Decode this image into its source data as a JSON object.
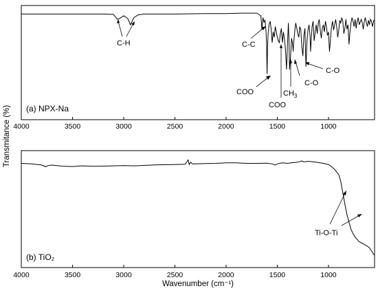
{
  "chart_data": [
    {
      "type": "line",
      "panel_label": "(a) NPX-Na",
      "xlim": [
        4000,
        550
      ],
      "x_reversed": true,
      "xticks": [
        4000,
        3500,
        3000,
        2500,
        2000,
        1500,
        1000
      ],
      "ylim": [
        0,
        1
      ],
      "series": [
        {
          "x": [
            4000,
            3800,
            3500,
            3200,
            3100,
            3060,
            3040,
            3000,
            2960,
            2935,
            2900,
            2860,
            2800,
            2500,
            2200,
            2000,
            1850,
            1700,
            1660,
            1650,
            1640,
            1630,
            1620,
            1610,
            1605,
            1600,
            1595,
            1590,
            1580,
            1570,
            1560,
            1550,
            1540,
            1530,
            1520,
            1510,
            1500,
            1490,
            1480,
            1470,
            1460,
            1450,
            1440,
            1430,
            1420,
            1410,
            1400,
            1392,
            1385,
            1380,
            1370,
            1360,
            1350,
            1345,
            1340,
            1330,
            1320,
            1310,
            1300,
            1290,
            1280,
            1270,
            1260,
            1250,
            1240,
            1230,
            1225,
            1220,
            1210,
            1200,
            1190,
            1180,
            1175,
            1170,
            1160,
            1150,
            1140,
            1130,
            1120,
            1110,
            1100,
            1090,
            1080,
            1070,
            1060,
            1050,
            1040,
            1030,
            1020,
            1010,
            1000,
            990,
            980,
            970,
            960,
            950,
            940,
            930,
            920,
            910,
            900,
            890,
            880,
            870,
            860,
            850,
            840,
            830,
            820,
            810,
            800,
            790,
            780,
            770,
            760,
            750,
            740,
            730,
            720,
            710,
            700,
            690,
            680,
            670,
            660,
            650,
            640,
            630,
            620,
            610,
            600,
            590,
            580,
            570,
            560,
            550
          ],
          "y": [
            0.92,
            0.92,
            0.92,
            0.92,
            0.915,
            0.86,
            0.87,
            0.9,
            0.87,
            0.8,
            0.88,
            0.91,
            0.92,
            0.92,
            0.925,
            0.925,
            0.93,
            0.93,
            0.9,
            0.75,
            0.88,
            0.83,
            0.85,
            0.72,
            0.6,
            0.25,
            0.55,
            0.7,
            0.8,
            0.84,
            0.76,
            0.6,
            0.72,
            0.66,
            0.78,
            0.72,
            0.66,
            0.62,
            0.6,
            0.7,
            0.76,
            0.6,
            0.72,
            0.64,
            0.52,
            0.3,
            0.6,
            0.82,
            0.6,
            0.3,
            0.45,
            0.65,
            0.58,
            0.5,
            0.6,
            0.72,
            0.82,
            0.76,
            0.7,
            0.66,
            0.78,
            0.74,
            0.55,
            0.45,
            0.68,
            0.76,
            0.55,
            0.33,
            0.62,
            0.74,
            0.8,
            0.68,
            0.5,
            0.6,
            0.78,
            0.84,
            0.62,
            0.72,
            0.8,
            0.7,
            0.82,
            0.86,
            0.74,
            0.65,
            0.76,
            0.8,
            0.72,
            0.84,
            0.78,
            0.68,
            0.72,
            0.5,
            0.64,
            0.78,
            0.84,
            0.74,
            0.8,
            0.86,
            0.78,
            0.66,
            0.74,
            0.85,
            0.82,
            0.88,
            0.84,
            0.7,
            0.76,
            0.86,
            0.75,
            0.8,
            0.58,
            0.72,
            0.82,
            0.88,
            0.84,
            0.78,
            0.86,
            0.76,
            0.84,
            0.88,
            0.8,
            0.83,
            0.86,
            0.82,
            0.75,
            0.84,
            0.88,
            0.82,
            0.78,
            0.85,
            0.8,
            0.86,
            0.84,
            0.78,
            0.84,
            0.86
          ]
        }
      ],
      "annotations": [
        {
          "text": "C-H"
        },
        {
          "text": "C-C"
        },
        {
          "text": "COO"
        },
        {
          "text": "COO"
        },
        {
          "text": "CH",
          "sub": "3"
        },
        {
          "text": "C-O"
        },
        {
          "text": "C-O"
        }
      ]
    },
    {
      "type": "line",
      "panel_label": "(b) TiO₂",
      "xlim": [
        4000,
        550
      ],
      "x_reversed": true,
      "xticks": [
        4000,
        3500,
        3000,
        2500,
        2000,
        1500,
        1000
      ],
      "xlabel": "Wavenumber (cm⁻¹)",
      "ylim": [
        0,
        1
      ],
      "series": [
        {
          "x": [
            4000,
            3900,
            3800,
            3760,
            3740,
            3700,
            3600,
            3500,
            3400,
            3300,
            3200,
            3100,
            3000,
            2900,
            2800,
            2700,
            2600,
            2500,
            2400,
            2370,
            2360,
            2345,
            2330,
            2300,
            2200,
            2100,
            2000,
            1900,
            1800,
            1700,
            1600,
            1550,
            1520,
            1500,
            1480,
            1450,
            1400,
            1350,
            1300,
            1260,
            1240,
            1200,
            1150,
            1100,
            1050,
            1000,
            975,
            950,
            925,
            900,
            880,
            860,
            840,
            820,
            800,
            780,
            760,
            740,
            720,
            700,
            680,
            660,
            640,
            620,
            600,
            580,
            560,
            550
          ],
          "y": [
            0.9,
            0.895,
            0.885,
            0.87,
            0.88,
            0.885,
            0.875,
            0.872,
            0.878,
            0.874,
            0.876,
            0.878,
            0.88,
            0.878,
            0.882,
            0.886,
            0.888,
            0.89,
            0.892,
            0.93,
            0.89,
            0.91,
            0.895,
            0.896,
            0.898,
            0.9,
            0.904,
            0.905,
            0.9,
            0.9,
            0.902,
            0.895,
            0.885,
            0.895,
            0.9,
            0.904,
            0.9,
            0.906,
            0.91,
            0.922,
            0.912,
            0.918,
            0.914,
            0.908,
            0.9,
            0.89,
            0.875,
            0.855,
            0.83,
            0.8,
            0.74,
            0.64,
            0.54,
            0.45,
            0.38,
            0.32,
            0.28,
            0.25,
            0.23,
            0.21,
            0.2,
            0.19,
            0.18,
            0.17,
            0.155,
            0.13,
            0.1,
            0.09
          ]
        }
      ],
      "annotations": [
        {
          "text": "Ti-O-Ti"
        }
      ]
    }
  ],
  "shared_ylabel": "Transmitance (%)"
}
